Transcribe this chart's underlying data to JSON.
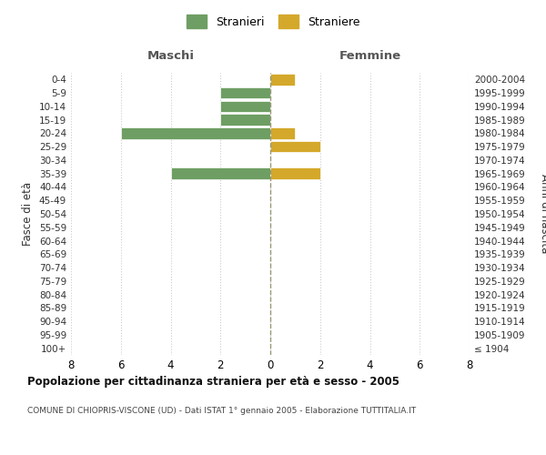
{
  "age_groups": [
    "100+",
    "95-99",
    "90-94",
    "85-89",
    "80-84",
    "75-79",
    "70-74",
    "65-69",
    "60-64",
    "55-59",
    "50-54",
    "45-49",
    "40-44",
    "35-39",
    "30-34",
    "25-29",
    "20-24",
    "15-19",
    "10-14",
    "5-9",
    "0-4"
  ],
  "birth_years": [
    "≤ 1904",
    "1905-1909",
    "1910-1914",
    "1915-1919",
    "1920-1924",
    "1925-1929",
    "1930-1934",
    "1935-1939",
    "1940-1944",
    "1945-1949",
    "1950-1954",
    "1955-1959",
    "1960-1964",
    "1965-1969",
    "1970-1974",
    "1975-1979",
    "1980-1984",
    "1985-1989",
    "1990-1994",
    "1995-1999",
    "2000-2004"
  ],
  "maschi": [
    0,
    0,
    0,
    0,
    0,
    0,
    0,
    0,
    0,
    0,
    0,
    0,
    0,
    -4,
    0,
    0,
    -6,
    -2,
    -2,
    -2,
    0
  ],
  "femmine": [
    0,
    0,
    0,
    0,
    0,
    0,
    0,
    0,
    0,
    0,
    0,
    0,
    0,
    2,
    0,
    2,
    1,
    0,
    0,
    0,
    1
  ],
  "male_color": "#6e9e63",
  "female_color": "#d4a82a",
  "xlim": [
    -8,
    8
  ],
  "xticks": [
    -8,
    -6,
    -4,
    -2,
    0,
    2,
    4,
    6,
    8
  ],
  "ylabel_left": "Fasce di età",
  "ylabel_right": "Anni di nascita",
  "legend_male": "Stranieri",
  "legend_female": "Straniere",
  "header_left": "Maschi",
  "header_right": "Femmine",
  "title": "Popolazione per cittadinanza straniera per età e sesso - 2005",
  "subtitle": "COMUNE DI CHIOPRIS-VISCONE (UD) - Dati ISTAT 1° gennaio 2005 - Elaborazione TUTTITALIA.IT",
  "background_color": "#ffffff",
  "grid_color": "#cccccc",
  "center_line_color": "#999977",
  "bar_height": 0.85
}
